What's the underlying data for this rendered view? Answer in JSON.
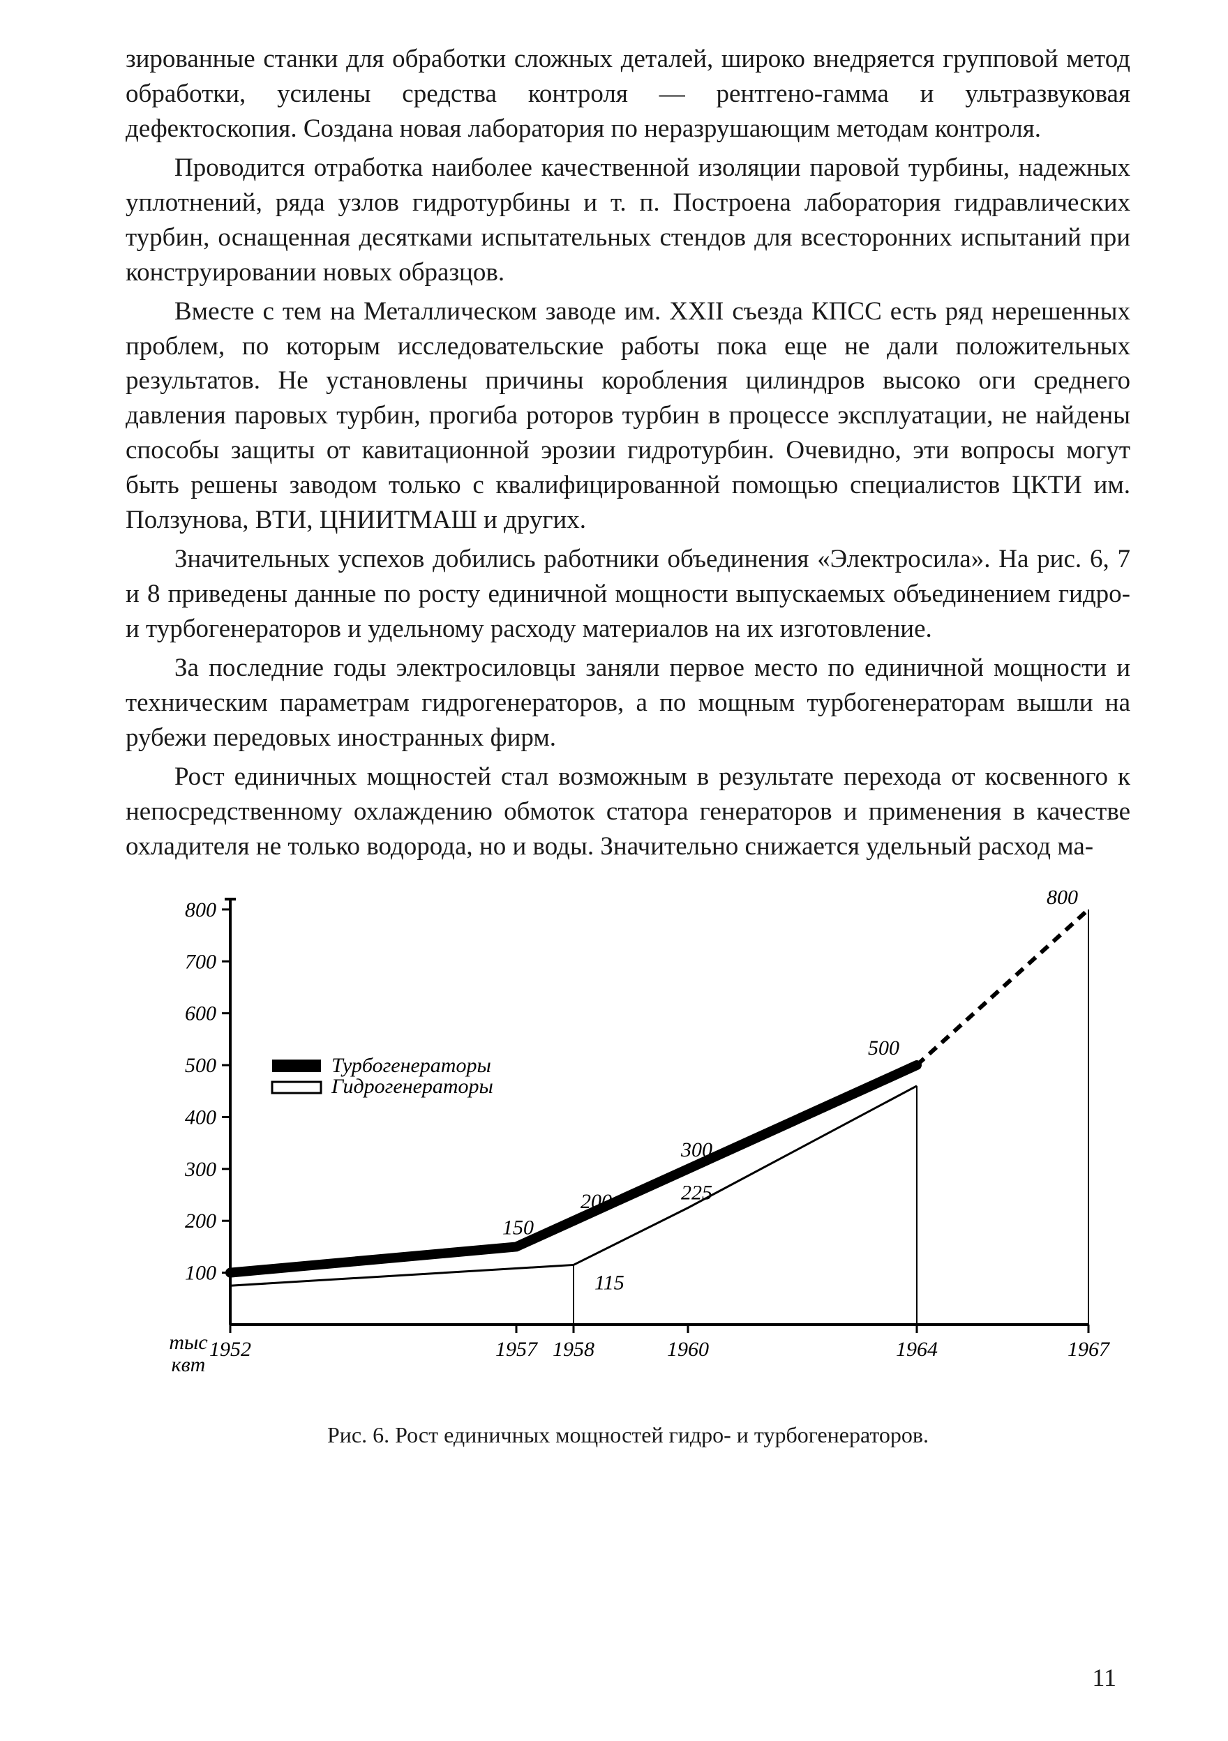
{
  "paragraphs": {
    "p1": "зированные станки для обработки сложных деталей, широко внедряется групповой метод обработки, усилены средства контроля — рентгено-гамма и ультразвуковая дефектоскопия. Создана новая лаборатория по неразрушающим методам контроля.",
    "p2": "Проводится отработка наиболее качественной изоляции паровой турбины, надежных уплотнений, ряда узлов гидротурбины и т. п. Построена лаборатория гидравлических турбин, оснащенная десятками испытательных стендов для всесторонних испытаний при конструировании новых образцов.",
    "p3": "Вместе с тем на Металлическом заводе им. XXII съезда КПСС есть ряд нерешенных проблем, по которым исследовательские работы пока еще не дали положительных результатов. Не установлены причины коробления цилиндров высоко оги среднего давления паровых турбин, прогиба роторов турбин в процессе эксплуатации, не найдены способы защиты от кавитационной эрозии гидротурбин. Очевидно, эти вопросы могут быть решены заводом только с квалифицированной помощью специалистов ЦКТИ им. Ползунова, ВТИ, ЦНИИТМАШ и других.",
    "p4": "Значительных успехов добились работники объединения «Электросила». На рис. 6, 7 и 8 приведены данные по росту единичной мощности выпускаемых объединением гидро- и турбогенераторов и удельному расходу материалов на их изготовление.",
    "p5": "За последние годы электросиловцы заняли первое место по единичной мощности и техническим параметрам гидрогенераторов, а по мощным турбогенераторам вышли на рубежи передовых иностранных фирм.",
    "p6": "Рост единичных мощностей стал возможным в результате перехода от косвенного к непосредственному охлаждению обмоток статора генераторов и применения в качестве охладителя не только водорода, но и воды. Значительно снижается удельный расход ма-"
  },
  "chart": {
    "type": "line",
    "y_axis": {
      "label_top": "800",
      "unit": "тыс\nквт",
      "ticks": [
        100,
        200,
        300,
        400,
        500,
        600,
        700,
        800
      ],
      "ylim": [
        0,
        820
      ]
    },
    "x_axis": {
      "ticks": [
        1952,
        1957,
        1958,
        1960,
        1964,
        1967
      ]
    },
    "legend": {
      "turbo": "Турбогенераторы",
      "hydro": "Гидрогенераторы"
    },
    "series": {
      "turbo": {
        "points": [
          [
            1952,
            100
          ],
          [
            1957,
            150
          ],
          [
            1958,
            200
          ],
          [
            1960,
            300
          ],
          [
            1964,
            500
          ],
          [
            1967,
            800
          ]
        ],
        "labels": {
          "1957": "150",
          "1958": "200",
          "1960": "300",
          "1964": "500",
          "1967": "800"
        },
        "color": "#000000",
        "stroke_width": 14,
        "dash_tail": "14,10"
      },
      "hydro": {
        "points": [
          [
            1952,
            75
          ],
          [
            1958,
            115
          ],
          [
            1960,
            225
          ],
          [
            1964,
            460
          ]
        ],
        "labels": {
          "1958": "115",
          "1960": "225"
        },
        "color": "#000000",
        "stroke_width": 3
      }
    },
    "axis_color": "#000000",
    "axis_width": 4,
    "background": "#ffffff",
    "font_size_tick": 30,
    "font_size_label": 30,
    "font_style_legend": "italic"
  },
  "caption": "Рис. 6. Рост единичных мощностей гидро- и турбогенераторов.",
  "page_number": "11"
}
